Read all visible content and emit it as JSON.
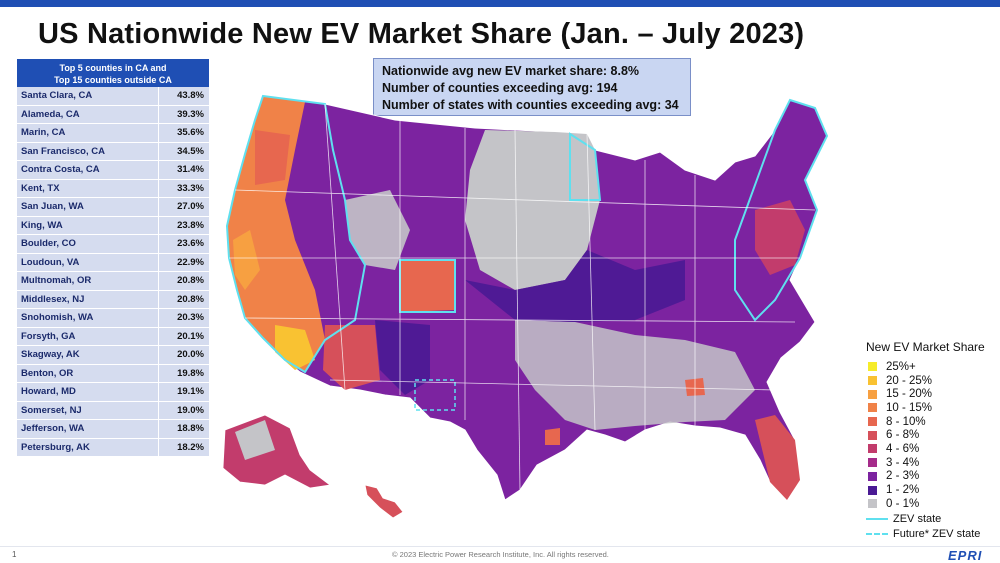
{
  "title": "US Nationwide New EV Market Share (Jan. – July 2023)",
  "table": {
    "header_line1": "Top 5 counties in CA and",
    "header_line2": "Top 15 counties outside CA",
    "rows": [
      {
        "county": "Santa Clara, CA",
        "share": "43.8%"
      },
      {
        "county": "Alameda, CA",
        "share": "39.3%"
      },
      {
        "county": "Marin, CA",
        "share": "35.6%"
      },
      {
        "county": "San Francisco, CA",
        "share": "34.5%"
      },
      {
        "county": "Contra Costa, CA",
        "share": "31.4%"
      },
      {
        "county": "Kent, TX",
        "share": "33.3%"
      },
      {
        "county": "San Juan, WA",
        "share": "27.0%"
      },
      {
        "county": "King, WA",
        "share": "23.8%"
      },
      {
        "county": "Boulder, CO",
        "share": "23.6%"
      },
      {
        "county": "Loudoun, VA",
        "share": "22.9%"
      },
      {
        "county": "Multnomah, OR",
        "share": "20.8%"
      },
      {
        "county": "Middlesex, NJ",
        "share": "20.8%"
      },
      {
        "county": "Snohomish, WA",
        "share": "20.3%"
      },
      {
        "county": "Forsyth, GA",
        "share": "20.1%"
      },
      {
        "county": "Skagway, AK",
        "share": "20.0%"
      },
      {
        "county": "Benton, OR",
        "share": "19.8%"
      },
      {
        "county": "Howard, MD",
        "share": "19.1%"
      },
      {
        "county": "Somerset, NJ",
        "share": "19.0%"
      },
      {
        "county": "Jefferson, WA",
        "share": "18.8%"
      },
      {
        "county": "Petersburg, AK",
        "share": "18.2%"
      }
    ]
  },
  "info": {
    "line1": "Nationwide avg new EV market share: 8.8%",
    "line2": "Number of counties exceeding avg: 194",
    "line3": "Number of states with counties exceeding avg: 34"
  },
  "legend": {
    "title": "New EV Market Share",
    "items": [
      {
        "label": "25%+",
        "color": "#f6ec2a"
      },
      {
        "label": "20 - 25%",
        "color": "#f9c232"
      },
      {
        "label": "15 - 20%",
        "color": "#f7a041"
      },
      {
        "label": "10 - 15%",
        "color": "#f08248"
      },
      {
        "label": "8 - 10%",
        "color": "#e7674f"
      },
      {
        "label": "6 - 8%",
        "color": "#d6505a"
      },
      {
        "label": "4 - 6%",
        "color": "#c23c6c"
      },
      {
        "label": "3 - 4%",
        "color": "#a52b8a"
      },
      {
        "label": "2 - 3%",
        "color": "#7c23a0"
      },
      {
        "label": "1 - 2%",
        "color": "#4a1a94"
      },
      {
        "label": "0 - 1%",
        "color": "#c4c4c8"
      }
    ],
    "zev_label": "ZEV state",
    "future_zev_label": "Future* ZEV state",
    "zev_color": "#5fe0ef"
  },
  "footer": {
    "page": "1",
    "copyright": "© 2023 Electric Power Research Institute, Inc. All rights reserved.",
    "logo": "EPRI"
  }
}
